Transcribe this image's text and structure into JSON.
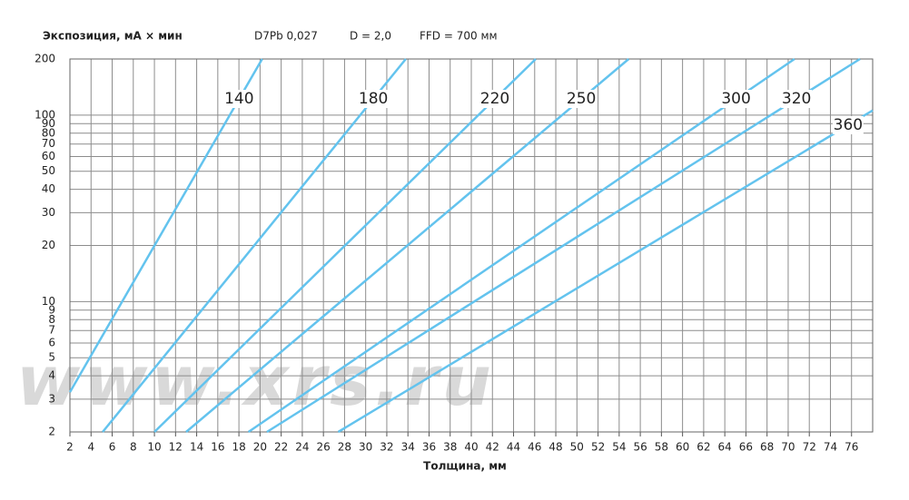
{
  "chart_data": {
    "type": "line",
    "title": "Экспозиция, мА × мин",
    "subtitles": [
      "D7Pb 0,027",
      "D = 2,0",
      "FFD = 700 мм"
    ],
    "xlabel": "Толщина, мм",
    "watermark": "www.xrs.ru",
    "log_y": true,
    "grid": true,
    "xlim": [
      2,
      78
    ],
    "ylim": [
      2,
      200
    ],
    "xticks": [
      2,
      4,
      6,
      8,
      10,
      12,
      14,
      16,
      18,
      20,
      22,
      24,
      26,
      28,
      30,
      32,
      34,
      36,
      38,
      40,
      42,
      44,
      46,
      48,
      50,
      52,
      54,
      56,
      58,
      60,
      62,
      64,
      66,
      68,
      70,
      72,
      74,
      76
    ],
    "yticks": [
      2,
      3,
      4,
      5,
      6,
      7,
      8,
      9,
      10,
      20,
      30,
      40,
      50,
      60,
      70,
      80,
      90,
      100,
      200
    ],
    "series": [
      {
        "name": "140",
        "color": "#63c3ee",
        "x": [
          2,
          20.2
        ],
        "values": [
          3.27,
          200
        ]
      },
      {
        "name": "180",
        "color": "#63c3ee",
        "x": [
          5.1,
          33.8
        ],
        "values": [
          2,
          200
        ]
      },
      {
        "name": "220",
        "color": "#63c3ee",
        "x": [
          10.0,
          46.1
        ],
        "values": [
          2,
          200
        ]
      },
      {
        "name": "250",
        "color": "#63c3ee",
        "x": [
          13.0,
          54.9
        ],
        "values": [
          2,
          200
        ]
      },
      {
        "name": "300",
        "color": "#63c3ee",
        "x": [
          18.9,
          70.6
        ],
        "values": [
          2,
          200
        ]
      },
      {
        "name": "320",
        "color": "#63c3ee",
        "x": [
          20.65,
          76.8
        ],
        "values": [
          2,
          200
        ]
      },
      {
        "name": "360",
        "color": "#63c3ee",
        "x": [
          27.4,
          78
        ],
        "values": [
          2,
          106
        ]
      }
    ]
  }
}
